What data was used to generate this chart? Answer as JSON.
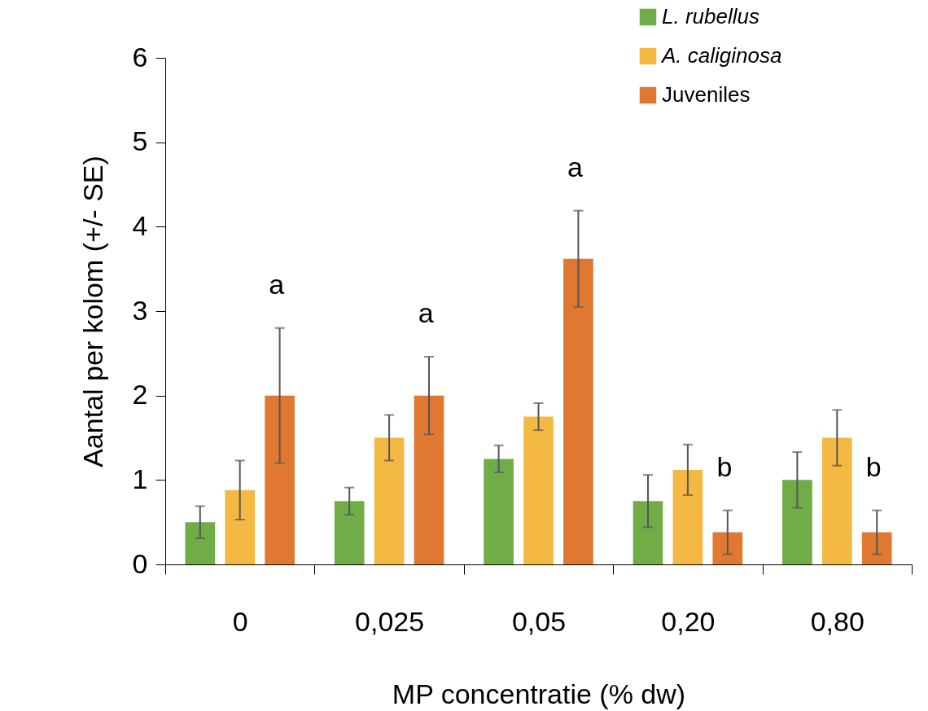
{
  "chart_data": {
    "type": "bar",
    "xlabel": "MP concentratie (% dw)",
    "ylabel": "Aantal per kolom (+/- SE)",
    "categories": [
      "0",
      "0,025",
      "0,05",
      "0,20",
      "0,80"
    ],
    "series": [
      {
        "name": "L. rubellus",
        "color": "#70ad47",
        "values": [
          0.5,
          0.75,
          1.25,
          0.75,
          1.0
        ],
        "errors": [
          0.19,
          0.16,
          0.16,
          0.31,
          0.33
        ]
      },
      {
        "name": "A. caliginosa",
        "color": "#f4b942",
        "values": [
          0.88,
          1.5,
          1.75,
          1.12,
          1.5
        ],
        "errors": [
          0.35,
          0.27,
          0.16,
          0.3,
          0.33
        ]
      },
      {
        "name": "Juveniles",
        "color": "#e07832",
        "values": [
          2.0,
          2.0,
          3.62,
          0.38,
          0.38
        ],
        "errors": [
          0.8,
          0.46,
          0.57,
          0.26,
          0.26
        ]
      }
    ],
    "annotations": [
      "a",
      "a",
      "a",
      "b",
      "b"
    ],
    "ylim": [
      0,
      6
    ],
    "yticks": [
      0,
      1,
      2,
      3,
      4,
      5,
      6
    ],
    "grid": false,
    "legend": "top right"
  }
}
